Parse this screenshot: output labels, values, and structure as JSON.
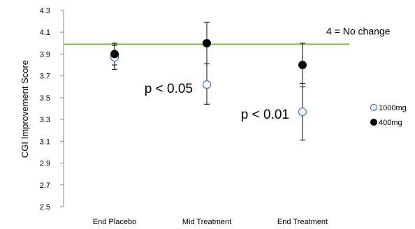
{
  "colors": {
    "reference_line": "#7ac143",
    "series_400": "#000000",
    "series_1000_fill": "#ffffff",
    "series_1000_stroke": "#4a76b8",
    "axis": "#888888"
  },
  "chart_data": {
    "type": "scatter",
    "title": "",
    "xlabel": "",
    "ylabel": "CGI Improvement Score",
    "ylim": [
      2.5,
      4.3
    ],
    "yticks": [
      "2.5",
      "2.7",
      "2.9",
      "3.1",
      "3.3",
      "3.5",
      "3.7",
      "3.9",
      "4.1",
      "4.3"
    ],
    "categories": [
      "End Placebo",
      "Mid Treatment",
      "End Treatment"
    ],
    "series": [
      {
        "name": "1000mg",
        "marker": "open-circle",
        "values": [
          3.87,
          3.62,
          3.37
        ],
        "err_low": [
          3.76,
          3.44,
          3.11
        ],
        "err_high": [
          3.98,
          3.81,
          3.63
        ]
      },
      {
        "name": "400mg",
        "marker": "filled-circle",
        "values": [
          3.9,
          4.0,
          3.8
        ],
        "err_low": [
          3.8,
          3.81,
          3.6
        ],
        "err_high": [
          4.0,
          4.19,
          4.0
        ]
      }
    ],
    "reference_line": {
      "y": 3.99,
      "label": "4 = No change"
    },
    "annotations": [
      {
        "text": "p < 0.05",
        "category": "Mid Treatment"
      },
      {
        "text": "p < 0.01",
        "category": "End Treatment"
      }
    ],
    "legend_position": "right",
    "grid": false
  }
}
